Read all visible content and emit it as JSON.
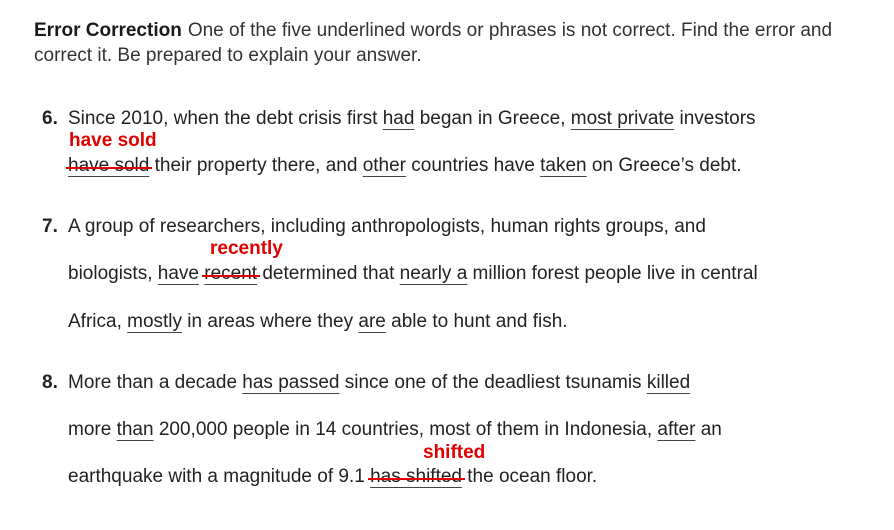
{
  "header": {
    "label": "Error Correction",
    "text": "One of the five underlined words or phrases is not correct. Find the error and correct it. Be prepared to explain your answer."
  },
  "q6": {
    "number": "6.",
    "l1_a": "Since 2010, when the debt crisis first ",
    "l1_u1": "had",
    "l1_b": " began in Greece, ",
    "l1_u2": "most private",
    "l1_c": " investors",
    "correction": "have sold",
    "l2_strike": "have sold",
    "l2_a": " their property there, and ",
    "l2_u1": "other",
    "l2_b": " countries have ",
    "l2_u2": "taken",
    "l2_c": " on Greece’s debt."
  },
  "q7": {
    "number": "7.",
    "l1": "A group of researchers, including anthropologists, human rights groups, and",
    "correction": "recently",
    "l2_a": "biologists, ",
    "l2_u1": "have",
    "l2_sp": " ",
    "l2_strike": "recent",
    "l2_b": " determined that ",
    "l2_u2": "nearly a",
    "l2_c": " million forest people live in central",
    "l3_a": "Africa, ",
    "l3_u1": "mostly",
    "l3_b": " in areas where they ",
    "l3_u2": "are",
    "l3_c": " able to hunt and fish."
  },
  "q8": {
    "number": "8.",
    "l1_a": "More than a decade ",
    "l1_u1": "has passed",
    "l1_b": " since one of the deadliest tsunamis ",
    "l1_u2": "killed",
    "l2_a": "more ",
    "l2_u1": "than",
    "l2_b": " 200,000 people in 14 countries, most of them in Indonesia, ",
    "l2_u2": "after",
    "l2_c": " an",
    "correction": "shifted",
    "l3_a": "earthquake with a magnitude of 9.1 ",
    "l3_strike": "has shifted",
    "l3_b": " the ocean floor."
  },
  "colors": {
    "correction": "#e00000",
    "text": "#222222"
  }
}
